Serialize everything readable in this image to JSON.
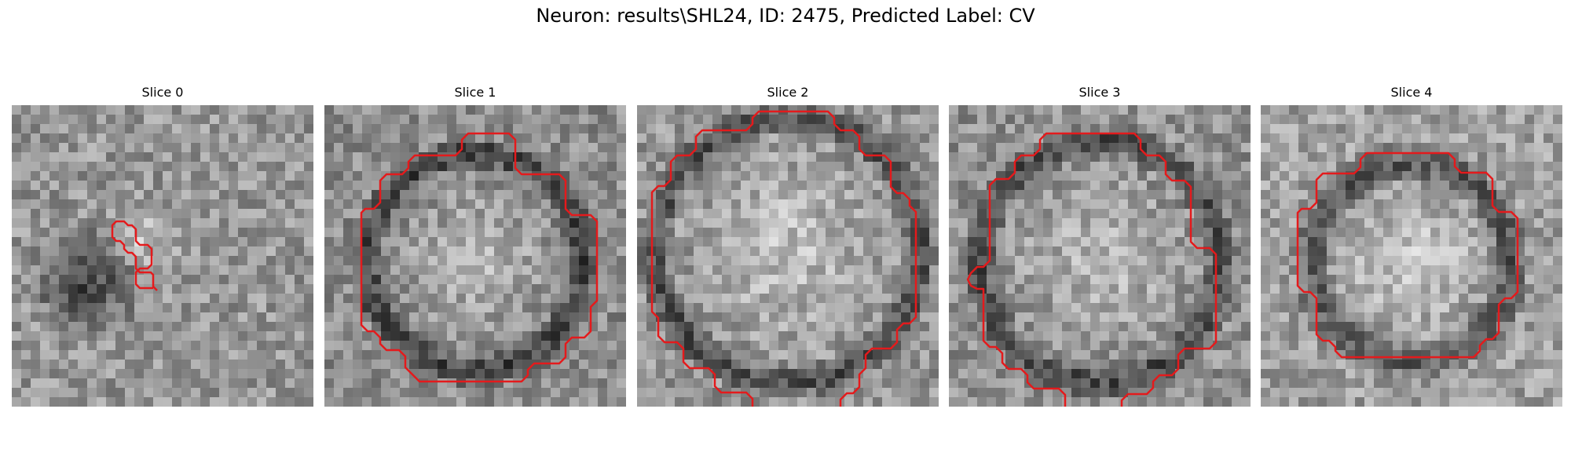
{
  "figure": {
    "suptitle": "Neuron: results\\SHL24, ID: 2475, Predicted Label: CV"
  },
  "panels": [
    {
      "title": "Slice 0"
    },
    {
      "title": "Slice 1"
    },
    {
      "title": "Slice 2"
    },
    {
      "title": "Slice 3"
    },
    {
      "title": "Slice 4"
    }
  ],
  "colors": {
    "contour": "#e41a1c",
    "background": "#ffffff"
  }
}
